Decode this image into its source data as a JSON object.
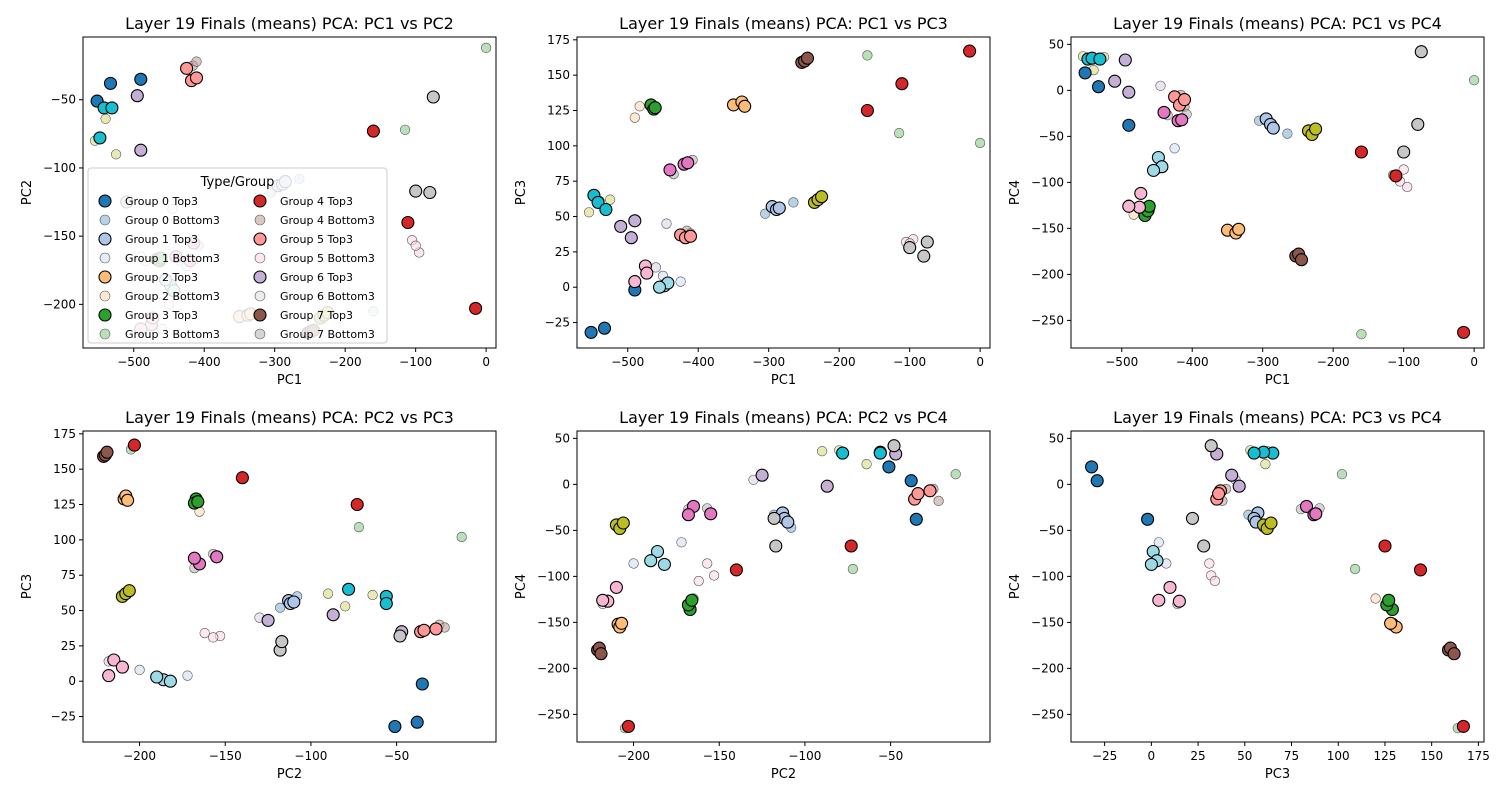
{
  "legend": {
    "title": "Type/Group",
    "entries": [
      {
        "label": "Group 0 Top3",
        "color": "#1f77b4",
        "top": true
      },
      {
        "label": "Group 0 Bottom3",
        "color": "#1f77b4",
        "top": false
      },
      {
        "label": "Group 1 Top3",
        "color": "#aec7e8",
        "top": true
      },
      {
        "label": "Group 1 Bottom3",
        "color": "#aec7e8",
        "top": false
      },
      {
        "label": "Group 2 Top3",
        "color": "#ffbb78",
        "top": true
      },
      {
        "label": "Group 2 Bottom3",
        "color": "#ffbb78",
        "top": false
      },
      {
        "label": "Group 3 Top3",
        "color": "#2ca02c",
        "top": true
      },
      {
        "label": "Group 3 Bottom3",
        "color": "#2ca02c",
        "top": false
      },
      {
        "label": "Group 4 Top3",
        "color": "#d62728",
        "top": true
      },
      {
        "label": "Group 4 Bottom3",
        "color": "#8c564b",
        "top": false
      },
      {
        "label": "Group 5 Top3",
        "color": "#ff9896",
        "top": true
      },
      {
        "label": "Group 5 Bottom3",
        "color": "#f7b6d2",
        "top": false
      },
      {
        "label": "Group 6 Top3",
        "color": "#c5b0d5",
        "top": true
      },
      {
        "label": "Group 6 Bottom3",
        "color": "#c7c7c7",
        "top": false
      },
      {
        "label": "Group 7 Top3",
        "color": "#8c564b",
        "top": true
      },
      {
        "label": "Group 7 Bottom3",
        "color": "#7f7f7f",
        "top": false
      }
    ]
  },
  "points": [
    {
      "name": "G0-T-a",
      "color": "#1f77b4",
      "top": true,
      "pc": [
        -490,
        -35,
        -2,
        -38
      ]
    },
    {
      "name": "G0-T-b",
      "color": "#1f77b4",
      "top": true,
      "pc": [
        -552,
        -51,
        -32,
        19
      ]
    },
    {
      "name": "G0-T-c",
      "color": "#1f77b4",
      "top": true,
      "pc": [
        -533,
        -38,
        -29,
        4
      ]
    },
    {
      "name": "G1-T-a",
      "color": "#aec7e8",
      "top": true,
      "pc": [
        -295,
        -113,
        57,
        -31
      ]
    },
    {
      "name": "G1-T-b",
      "color": "#aec7e8",
      "top": true,
      "pc": [
        -289,
        -112,
        55,
        -37
      ]
    },
    {
      "name": "G1-T-c",
      "color": "#aec7e8",
      "top": true,
      "pc": [
        -285,
        -110,
        56,
        -41
      ]
    },
    {
      "name": "G2-T-a",
      "color": "#ffbb78",
      "top": true,
      "pc": [
        -350,
        -209,
        129,
        -152
      ]
    },
    {
      "name": "G2-T-b",
      "color": "#ffbb78",
      "top": true,
      "pc": [
        -338,
        -208,
        131,
        -155
      ]
    },
    {
      "name": "G2-T-c",
      "color": "#ffbb78",
      "top": true,
      "pc": [
        -334,
        -207,
        128,
        -151
      ]
    },
    {
      "name": "G3-T-a",
      "color": "#2ca02c",
      "top": true,
      "pc": [
        -467,
        -167,
        129,
        -136
      ]
    },
    {
      "name": "G3-T-b",
      "color": "#2ca02c",
      "top": true,
      "pc": [
        -463,
        -168,
        126,
        -131
      ]
    },
    {
      "name": "G3-T-c",
      "color": "#2ca02c",
      "top": true,
      "pc": [
        -461,
        -166,
        127,
        -126
      ]
    },
    {
      "name": "G4-T-a",
      "color": "#d62728",
      "top": true,
      "pc": [
        -15,
        -203,
        167,
        -263
      ]
    },
    {
      "name": "G4-T-b",
      "color": "#d62728",
      "top": true,
      "pc": [
        -111,
        -140,
        144,
        -93
      ]
    },
    {
      "name": "G4-T-c",
      "color": "#d62728",
      "top": true,
      "pc": [
        -160,
        -73,
        125,
        -67
      ]
    },
    {
      "name": "G5-T-a",
      "color": "#ff9896",
      "top": true,
      "pc": [
        -425,
        -27,
        37,
        -7
      ]
    },
    {
      "name": "G5-T-b",
      "color": "#ff9896",
      "top": true,
      "pc": [
        -418,
        -36,
        35,
        -16
      ]
    },
    {
      "name": "G5-T-c",
      "color": "#ff9896",
      "top": true,
      "pc": [
        -411,
        -34,
        36,
        -10
      ]
    },
    {
      "name": "G6-T-a",
      "color": "#c5b0d5",
      "top": true,
      "pc": [
        -495,
        -47,
        35,
        33
      ]
    },
    {
      "name": "G6-T-b",
      "color": "#c5b0d5",
      "top": true,
      "pc": [
        -490,
        -87,
        47,
        -2
      ]
    },
    {
      "name": "G6-T-c",
      "color": "#c5b0d5",
      "top": true,
      "pc": [
        -510,
        -125,
        43,
        10
      ]
    },
    {
      "name": "G7-T-a",
      "color": "#8c564b",
      "top": true,
      "pc": [
        -253,
        -221,
        159,
        -180
      ]
    },
    {
      "name": "G7-T-b",
      "color": "#8c564b",
      "top": true,
      "pc": [
        -249,
        -220,
        160,
        -178
      ]
    },
    {
      "name": "G7-T-c",
      "color": "#8c564b",
      "top": true,
      "pc": [
        -245,
        -219,
        162,
        -184
      ]
    },
    {
      "name": "TC-a",
      "color": "#17becf",
      "top": true,
      "pc": [
        -548,
        -78,
        65,
        34
      ]
    },
    {
      "name": "TC-b",
      "color": "#17becf",
      "top": true,
      "pc": [
        -542,
        -56,
        60,
        35
      ]
    },
    {
      "name": "TC-c",
      "color": "#17becf",
      "top": true,
      "pc": [
        -531,
        -56,
        55,
        34
      ]
    },
    {
      "name": "TP-a",
      "color": "#e377c2",
      "top": true,
      "pc": [
        -440,
        -165,
        83,
        -24
      ]
    },
    {
      "name": "TP-b",
      "color": "#e377c2",
      "top": true,
      "pc": [
        -420,
        -168,
        87,
        -33
      ]
    },
    {
      "name": "TP-c",
      "color": "#e377c2",
      "top": true,
      "pc": [
        -415,
        -155,
        88,
        -32
      ]
    },
    {
      "name": "TO-a",
      "color": "#bcbd22",
      "top": true,
      "pc": [
        -235,
        -210,
        60,
        -44
      ]
    },
    {
      "name": "TO-b",
      "color": "#bcbd22",
      "top": true,
      "pc": [
        -230,
        -208,
        62,
        -48
      ]
    },
    {
      "name": "TO-c",
      "color": "#bcbd22",
      "top": true,
      "pc": [
        -225,
        -206,
        64,
        -42
      ]
    },
    {
      "name": "TK-a",
      "color": "#f7b6d2",
      "top": true,
      "pc": [
        -475,
        -215,
        15,
        -127
      ]
    },
    {
      "name": "TK-b",
      "color": "#f7b6d2",
      "top": true,
      "pc": [
        -473,
        -210,
        10,
        -112
      ]
    },
    {
      "name": "TK-c",
      "color": "#f7b6d2",
      "top": true,
      "pc": [
        -490,
        -218,
        4,
        -126
      ]
    },
    {
      "name": "TLB-a",
      "color": "#9edae5",
      "top": true,
      "pc": [
        -448,
        -186,
        1,
        -73
      ]
    },
    {
      "name": "TLB-b",
      "color": "#9edae5",
      "top": true,
      "pc": [
        -443,
        -190,
        3,
        -83
      ]
    },
    {
      "name": "TLB-c",
      "color": "#9edae5",
      "top": true,
      "pc": [
        -455,
        -182,
        0,
        -87
      ]
    },
    {
      "name": "TG-a",
      "color": "#c7c7c7",
      "top": true,
      "pc": [
        -75,
        -48,
        32,
        42
      ]
    },
    {
      "name": "TG-b",
      "color": "#c7c7c7",
      "top": true,
      "pc": [
        -80,
        -118,
        22,
        -37
      ]
    },
    {
      "name": "TG-c",
      "color": "#c7c7c7",
      "top": true,
      "pc": [
        -100,
        -117,
        28,
        -67
      ]
    },
    {
      "name": "G0-B-a",
      "color": "#1f77b4",
      "top": false,
      "pc": [
        -305,
        -118,
        52,
        -33
      ]
    },
    {
      "name": "G0-B-b",
      "color": "#1f77b4",
      "top": false,
      "pc": [
        -265,
        -108,
        60,
        -47
      ]
    },
    {
      "name": "G1-B-a",
      "color": "#aec7e8",
      "top": false,
      "pc": [
        -450,
        -200,
        8,
        -86
      ]
    },
    {
      "name": "G1-B-b",
      "color": "#aec7e8",
      "top": false,
      "pc": [
        -425,
        -172,
        4,
        -63
      ]
    },
    {
      "name": "G2-B-a",
      "color": "#ffbb78",
      "top": false,
      "pc": [
        -490,
        -165,
        120,
        -124
      ]
    },
    {
      "name": "G2-B-b",
      "color": "#ffbb78",
      "top": false,
      "pc": [
        -483,
        -168,
        128,
        -135
      ]
    },
    {
      "name": "G3-B-a",
      "color": "#2ca02c",
      "top": false,
      "pc": [
        -115,
        -72,
        109,
        -92
      ]
    },
    {
      "name": "G3-B-b",
      "color": "#2ca02c",
      "top": false,
      "pc": [
        0,
        -12,
        102,
        11
      ]
    },
    {
      "name": "G3-B-c",
      "color": "#2ca02c",
      "top": false,
      "pc": [
        -160,
        -205,
        164,
        -265
      ]
    },
    {
      "name": "G4-B-a",
      "color": "#8c564b",
      "top": false,
      "pc": [
        -416,
        -25,
        40,
        -5
      ]
    },
    {
      "name": "G4-B-b",
      "color": "#8c564b",
      "top": false,
      "pc": [
        -411,
        -22,
        38,
        -18
      ]
    },
    {
      "name": "G5-B-a",
      "color": "#f7b6d2",
      "top": false,
      "pc": [
        -105,
        -153,
        32,
        -99
      ]
    },
    {
      "name": "G5-B-b",
      "color": "#f7b6d2",
      "top": false,
      "pc": [
        -95,
        -162,
        34,
        -105
      ]
    },
    {
      "name": "G5-B-c",
      "color": "#f7b6d2",
      "top": false,
      "pc": [
        -100,
        -157,
        31,
        -86
      ]
    },
    {
      "name": "G6-B-a",
      "color": "#c5b0d5",
      "top": false,
      "pc": [
        -460,
        -218,
        14,
        -130
      ]
    },
    {
      "name": "G6-B-b",
      "color": "#c5b0d5",
      "top": false,
      "pc": [
        -445,
        -130,
        45,
        5
      ]
    },
    {
      "name": "G7-B-a",
      "color": "#7f7f7f",
      "top": false,
      "pc": [
        -435,
        -168,
        80,
        -27
      ]
    },
    {
      "name": "G7-B-b",
      "color": "#7f7f7f",
      "top": false,
      "pc": [
        -408,
        -157,
        90,
        -26
      ]
    },
    {
      "name": "G8-B-a",
      "color": "#bcbd22",
      "top": false,
      "pc": [
        -555,
        -80,
        53,
        37
      ]
    },
    {
      "name": "G8-B-b",
      "color": "#bcbd22",
      "top": false,
      "pc": [
        -540,
        -64,
        61,
        22
      ]
    },
    {
      "name": "G8-B-c",
      "color": "#bcbd22",
      "top": false,
      "pc": [
        -525,
        -90,
        62,
        36
      ]
    }
  ],
  "panels": [
    {
      "title": "Layer 19 Finals (means) PCA: PC1 vs PC2",
      "xlabel": "PC1",
      "ylabel": "PC2",
      "xi": 0,
      "yi": 1,
      "xlim": [
        -572,
        14
      ],
      "ylim": [
        -232,
        -4
      ],
      "xticks": [
        -500,
        -400,
        -300,
        -200,
        -100,
        0
      ],
      "yticks": [
        -200,
        -150,
        -100,
        -50
      ],
      "legend": true
    },
    {
      "title": "Layer 19 Finals (means) PCA: PC1 vs PC3",
      "xlabel": "PC1",
      "ylabel": "PC3",
      "xi": 0,
      "yi": 2,
      "xlim": [
        -572,
        14
      ],
      "ylim": [
        -43,
        177
      ],
      "xticks": [
        -500,
        -400,
        -300,
        -200,
        -100,
        0
      ],
      "yticks": [
        -25,
        0,
        25,
        50,
        75,
        100,
        125,
        150,
        175
      ],
      "legend": false
    },
    {
      "title": "Layer 19 Finals (means) PCA: PC1 vs PC4",
      "xlabel": "PC1",
      "ylabel": "PC4",
      "xi": 0,
      "yi": 3,
      "xlim": [
        -572,
        14
      ],
      "ylim": [
        -280,
        58
      ],
      "xticks": [
        -500,
        -400,
        -300,
        -200,
        -100,
        0
      ],
      "yticks": [
        -250,
        -200,
        -150,
        -100,
        -50,
        0,
        50
      ],
      "legend": false
    },
    {
      "title": "Layer 19 Finals (means) PCA: PC2 vs PC3",
      "xlabel": "PC2",
      "ylabel": "PC3",
      "xi": 1,
      "yi": 2,
      "xlim": [
        -233,
        8
      ],
      "ylim": [
        -43,
        177
      ],
      "xticks": [
        -200,
        -150,
        -100,
        -50
      ],
      "yticks": [
        -25,
        0,
        25,
        50,
        75,
        100,
        125,
        150,
        175
      ],
      "legend": false
    },
    {
      "title": "Layer 19 Finals (means) PCA: PC2 vs PC4",
      "xlabel": "PC2",
      "ylabel": "PC4",
      "xi": 1,
      "yi": 3,
      "xlim": [
        -233,
        8
      ],
      "ylim": [
        -280,
        58
      ],
      "xticks": [
        -200,
        -150,
        -100,
        -50
      ],
      "yticks": [
        -250,
        -200,
        -150,
        -100,
        -50,
        0,
        50
      ],
      "legend": false
    },
    {
      "title": "Layer 19 Finals (means) PCA: PC3 vs PC4",
      "xlabel": "PC3",
      "ylabel": "PC4",
      "xi": 2,
      "yi": 3,
      "xlim": [
        -43,
        178
      ],
      "ylim": [
        -280,
        58
      ],
      "xticks": [
        -25,
        0,
        25,
        50,
        75,
        100,
        125,
        150,
        175
      ],
      "yticks": [
        -250,
        -200,
        -150,
        -100,
        -50,
        0,
        50
      ],
      "legend": false
    }
  ],
  "chart_data": [
    {
      "type": "scatter",
      "title": "Layer 19 Finals (means) PCA: PC1 vs PC2",
      "xlabel": "PC1",
      "ylabel": "PC2",
      "xlim": [
        -572,
        14
      ],
      "ylim": [
        -232,
        -4
      ],
      "grid": false,
      "legend": "lower-left"
    },
    {
      "type": "scatter",
      "title": "Layer 19 Finals (means) PCA: PC1 vs PC3",
      "xlabel": "PC1",
      "ylabel": "PC3",
      "xlim": [
        -572,
        14
      ],
      "ylim": [
        -43,
        177
      ],
      "grid": false
    },
    {
      "type": "scatter",
      "title": "Layer 19 Finals (means) PCA: PC1 vs PC4",
      "xlabel": "PC1",
      "ylabel": "PC4",
      "xlim": [
        -572,
        14
      ],
      "ylim": [
        -280,
        58
      ],
      "grid": false
    },
    {
      "type": "scatter",
      "title": "Layer 19 Finals (means) PCA: PC2 vs PC3",
      "xlabel": "PC2",
      "ylabel": "PC3",
      "xlim": [
        -233,
        8
      ],
      "ylim": [
        -43,
        177
      ],
      "grid": false
    },
    {
      "type": "scatter",
      "title": "Layer 19 Finals (means) PCA: PC2 vs PC4",
      "xlabel": "PC2",
      "ylabel": "PC4",
      "xlim": [
        -233,
        8
      ],
      "ylim": [
        -280,
        58
      ],
      "grid": false
    },
    {
      "type": "scatter",
      "title": "Layer 19 Finals (means) PCA: PC3 vs PC4",
      "xlabel": "PC3",
      "ylabel": "PC4",
      "xlim": [
        -43,
        178
      ],
      "ylim": [
        -280,
        58
      ],
      "grid": false
    }
  ]
}
